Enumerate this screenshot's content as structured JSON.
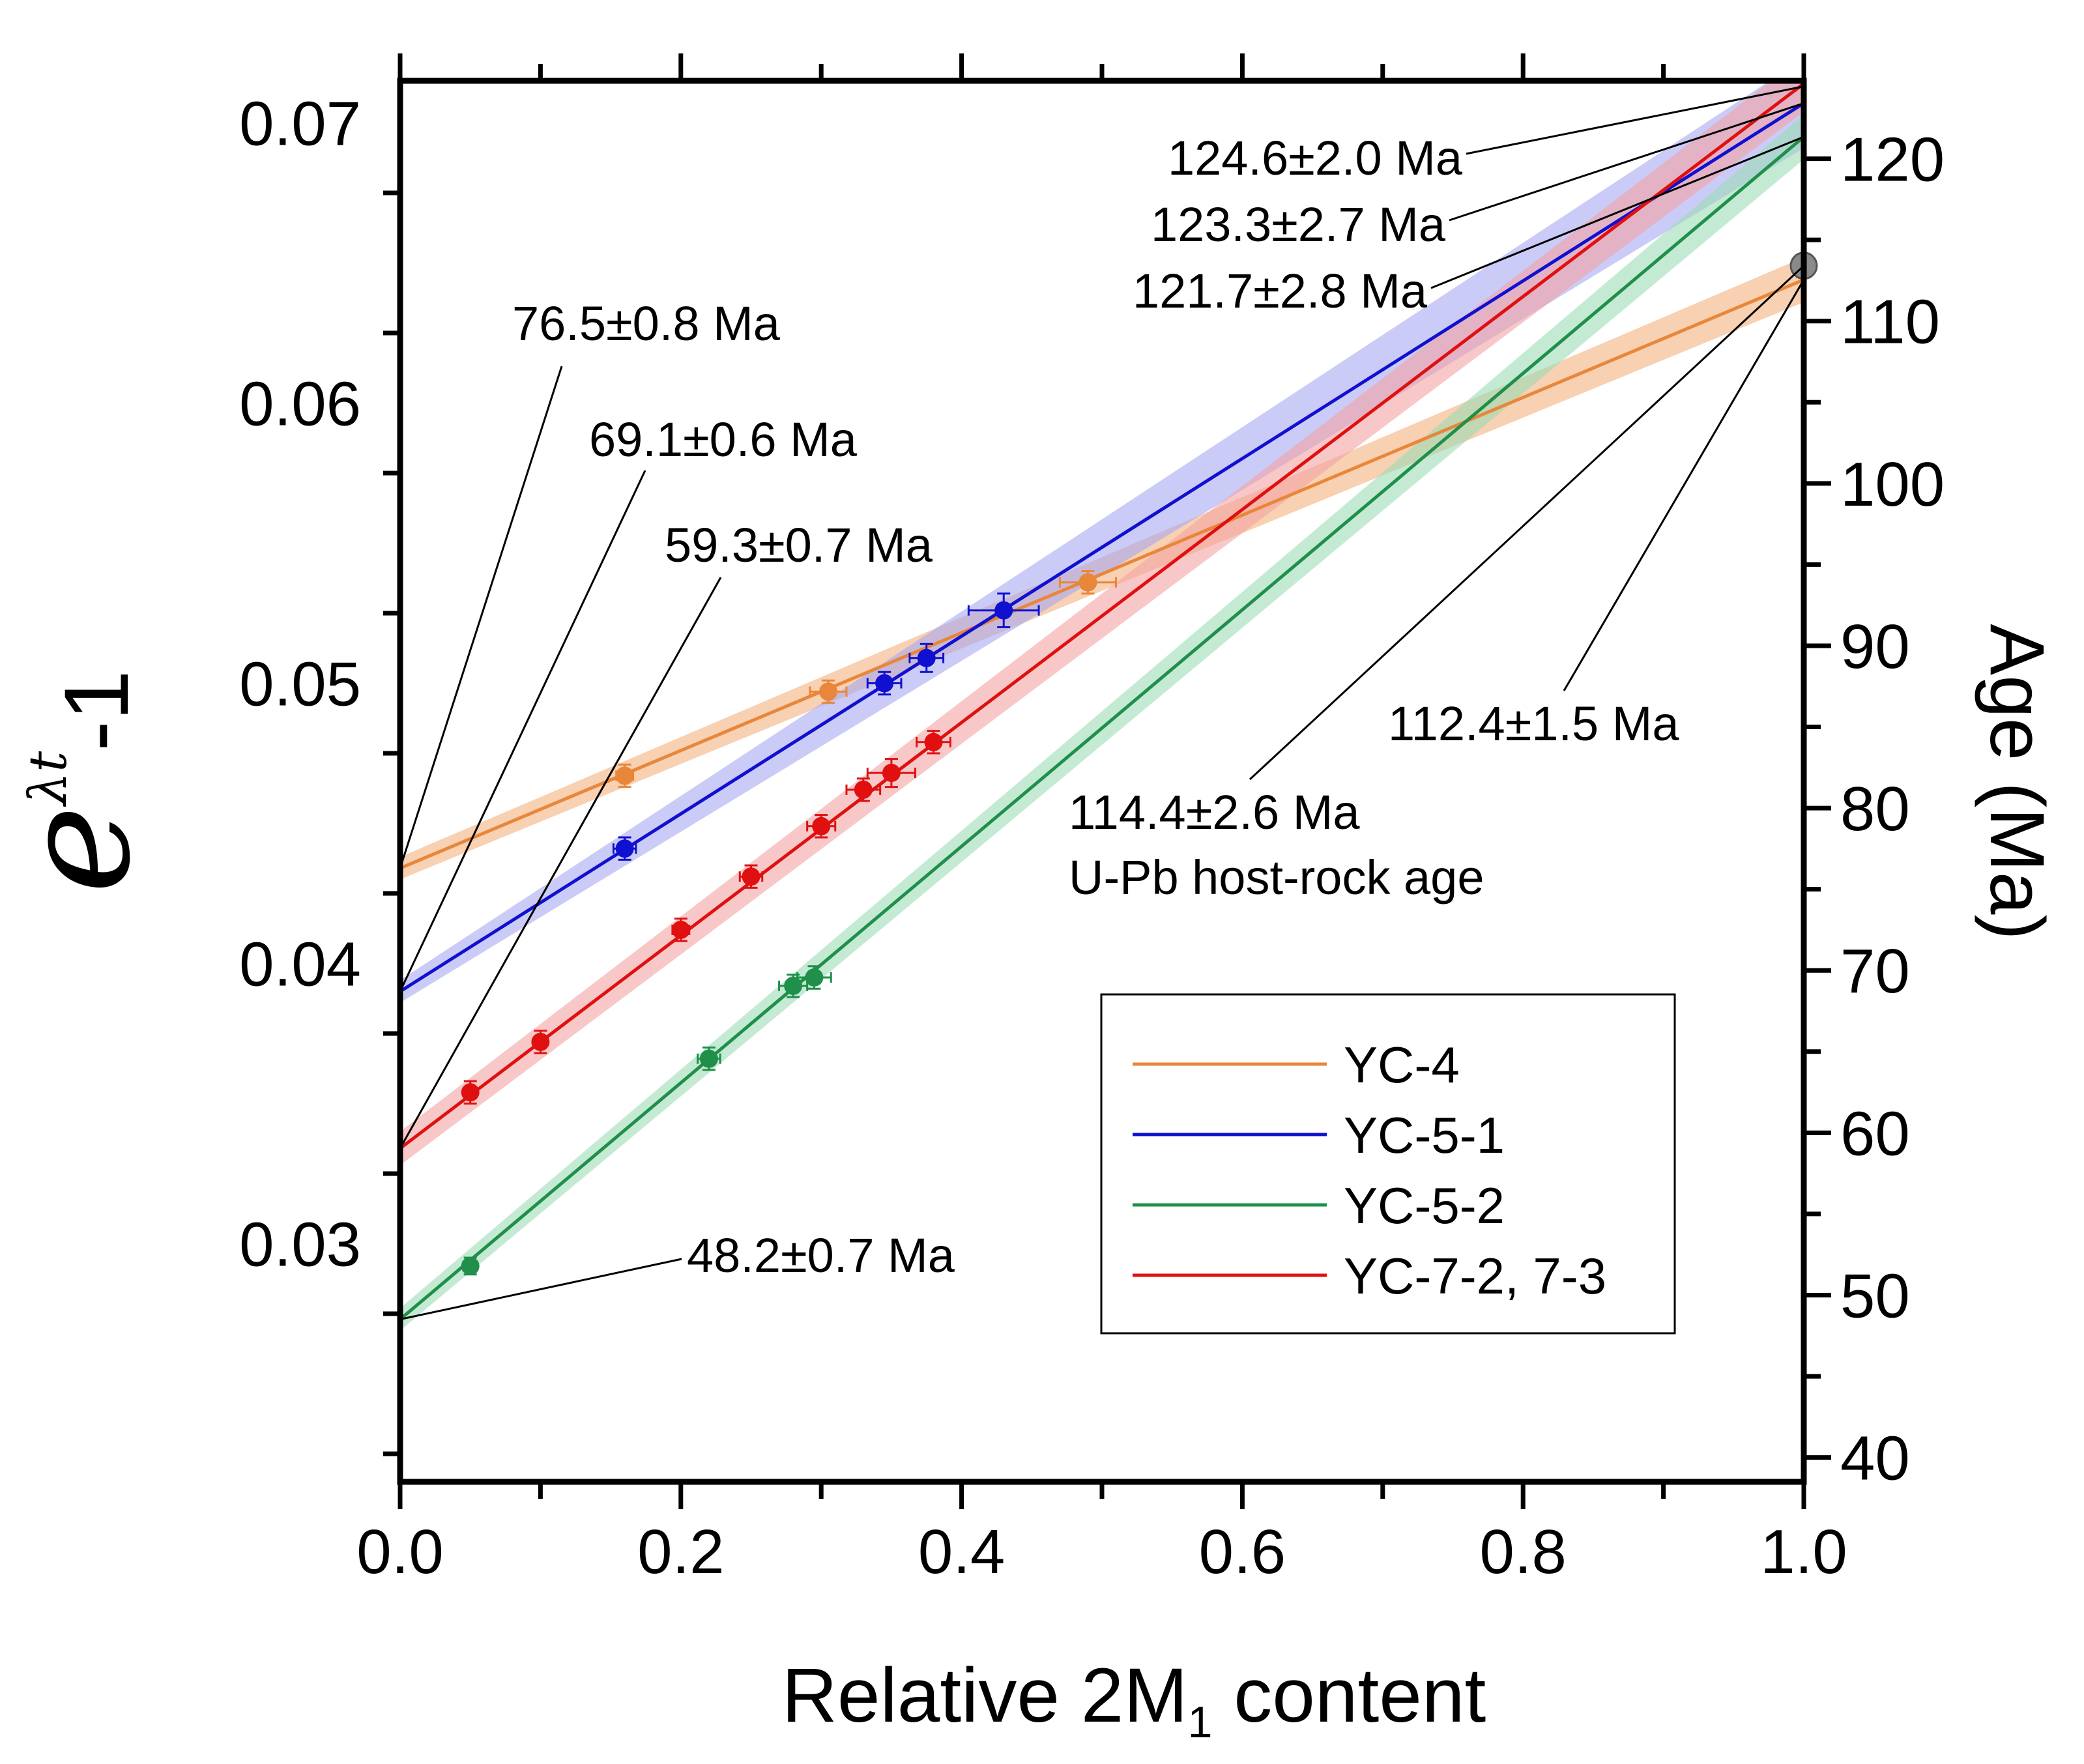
{
  "chart_data": {
    "type": "scatter",
    "xlabel_prefix": "Relative 2M",
    "xlabel_sub": "1",
    "xlabel_suffix": " content",
    "ylabel_base": "e",
    "ylabel_sup": "λt",
    "ylabel_suffix": "-1",
    "y2label": "Age (Ma)",
    "xlim": [
      0.0,
      1.0
    ],
    "ylim": [
      0.0215,
      0.0715
    ],
    "y2lim": [
      38.5,
      124.8
    ],
    "x_ticks": [
      "0.0",
      "0.2",
      "0.4",
      "0.6",
      "0.8",
      "1.0"
    ],
    "x_tick_values": [
      0.0,
      0.2,
      0.4,
      0.6,
      0.8,
      1.0
    ],
    "y_ticks": [
      "0.03",
      "0.04",
      "0.05",
      "0.06",
      "0.07"
    ],
    "y_tick_values": [
      0.03,
      0.04,
      0.05,
      0.06,
      0.07
    ],
    "y2_ticks": [
      "40",
      "50",
      "60",
      "70",
      "80",
      "90",
      "100",
      "110",
      "120"
    ],
    "y2_tick_values": [
      40,
      50,
      60,
      70,
      80,
      90,
      100,
      110,
      120
    ],
    "series": [
      {
        "name": "YC-4",
        "color": "#e8873a",
        "band_color": "#f4b07e",
        "fit": {
          "intercept": 0.0434,
          "slope": 0.021
        },
        "band_halfwidth": [
          0.0004,
          0.0008
        ],
        "points": [
          {
            "x": 0.16,
            "y": 0.0467,
            "xerr": 0.006,
            "yerr": 0.0004
          },
          {
            "x": 0.305,
            "y": 0.0497,
            "xerr": 0.013,
            "yerr": 0.0004
          },
          {
            "x": 0.49,
            "y": 0.0536,
            "xerr": 0.02,
            "yerr": 0.0004
          }
        ]
      },
      {
        "name": "YC-5-1",
        "color": "#1010d0",
        "band_color": "#a8a8f2",
        "fit": {
          "intercept": 0.039,
          "slope": 0.0317
        },
        "band_halfwidth": [
          0.0004,
          0.0016
        ],
        "points": [
          {
            "x": 0.16,
            "y": 0.0441,
            "xerr": 0.008,
            "yerr": 0.0004
          },
          {
            "x": 0.345,
            "y": 0.05,
            "xerr": 0.012,
            "yerr": 0.0004
          },
          {
            "x": 0.375,
            "y": 0.0509,
            "xerr": 0.012,
            "yerr": 0.0005
          },
          {
            "x": 0.43,
            "y": 0.0526,
            "xerr": 0.025,
            "yerr": 0.0006
          }
        ]
      },
      {
        "name": "YC-5-2",
        "color": "#1f8f4a",
        "band_color": "#9ddcb6",
        "fit": {
          "intercept": 0.0273,
          "slope": 0.0422
        },
        "band_halfwidth": [
          0.0004,
          0.0008
        ],
        "points": [
          {
            "x": 0.05,
            "y": 0.0292,
            "xerr": 0.005,
            "yerr": 0.0003
          },
          {
            "x": 0.22,
            "y": 0.0366,
            "xerr": 0.008,
            "yerr": 0.0004
          },
          {
            "x": 0.28,
            "y": 0.0392,
            "xerr": 0.01,
            "yerr": 0.0004
          },
          {
            "x": 0.295,
            "y": 0.0395,
            "xerr": 0.012,
            "yerr": 0.0004
          }
        ]
      },
      {
        "name": "YC-7-2, 7-3",
        "color": "#e01010",
        "band_color": "#f4a3a3",
        "fit": {
          "intercept": 0.0334,
          "slope": 0.038
        },
        "band_halfwidth": [
          0.0006,
          0.001
        ],
        "points": [
          {
            "x": 0.05,
            "y": 0.0354,
            "xerr": 0.004,
            "yerr": 0.0004
          },
          {
            "x": 0.1,
            "y": 0.0372,
            "xerr": 0.004,
            "yerr": 0.0004
          },
          {
            "x": 0.2,
            "y": 0.0412,
            "xerr": 0.006,
            "yerr": 0.0004
          },
          {
            "x": 0.25,
            "y": 0.0431,
            "xerr": 0.008,
            "yerr": 0.0004
          },
          {
            "x": 0.3,
            "y": 0.0449,
            "xerr": 0.01,
            "yerr": 0.0004
          },
          {
            "x": 0.33,
            "y": 0.0462,
            "xerr": 0.012,
            "yerr": 0.0004
          },
          {
            "x": 0.35,
            "y": 0.0468,
            "xerr": 0.017,
            "yerr": 0.0005
          },
          {
            "x": 0.38,
            "y": 0.0479,
            "xerr": 0.012,
            "yerr": 0.0004
          }
        ]
      }
    ],
    "host_rock_point": {
      "x": 1.0,
      "y": 0.0649,
      "color": "#8a8a8a"
    },
    "annotations": [
      {
        "id": "ann-124-6",
        "lines": [
          "124.6±2.0 Ma"
        ],
        "target": {
          "x": 1.0,
          "y": 0.0713
        }
      },
      {
        "id": "ann-123-3",
        "lines": [
          "123.3±2.7 Ma"
        ],
        "target": {
          "x": 1.0,
          "y": 0.0707
        }
      },
      {
        "id": "ann-121-7",
        "lines": [
          "121.7±2.8 Ma"
        ],
        "target": {
          "x": 1.0,
          "y": 0.0695
        }
      },
      {
        "id": "ann-76-5",
        "lines": [
          "76.5±0.8 Ma"
        ],
        "target": {
          "x": 0.0,
          "y": 0.0434
        }
      },
      {
        "id": "ann-69-1",
        "lines": [
          "69.1±0.6 Ma"
        ],
        "target": {
          "x": 0.0,
          "y": 0.039
        }
      },
      {
        "id": "ann-59-3",
        "lines": [
          "59.3±0.7 Ma"
        ],
        "target": {
          "x": 0.0,
          "y": 0.0334
        }
      },
      {
        "id": "ann-48-2",
        "lines": [
          "48.2±0.7 Ma"
        ],
        "target": {
          "x": 0.0,
          "y": 0.0273
        }
      },
      {
        "id": "ann-112-4",
        "lines": [
          "112.4±1.5 Ma"
        ],
        "target": {
          "x": 1.0,
          "y": 0.0644
        }
      },
      {
        "id": "ann-114-4",
        "lines": [
          "114.4±2.6 Ma",
          "U-Pb host-rock age"
        ],
        "target": {
          "x": 1.0,
          "y": 0.0649
        }
      }
    ],
    "legend": {
      "position": "lower-right",
      "entries": [
        "YC-4",
        "YC-5-1",
        "YC-5-2",
        "YC-7-2, 7-3"
      ]
    }
  }
}
